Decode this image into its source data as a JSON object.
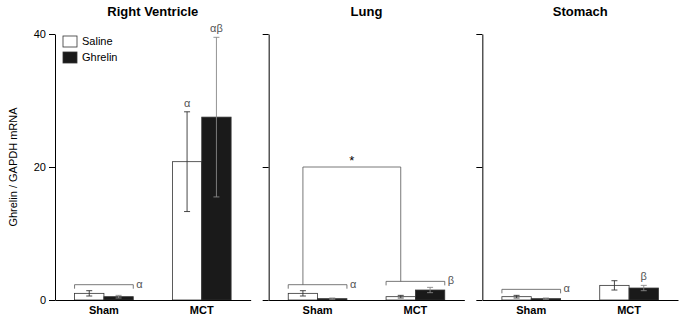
{
  "chart_data": [
    {
      "type": "bar",
      "title": "Right Ventricle",
      "y_label": "Ghrelin / GAPDH mRNA",
      "categories": [
        "Sham",
        "MCT"
      ],
      "series": [
        {
          "name": "Saline",
          "color": "white",
          "values": [
            1.0,
            20.8
          ],
          "errors": [
            0.4,
            7.5
          ]
        },
        {
          "name": "Ghrelin",
          "color": "#1a1a1a",
          "values": [
            0.5,
            27.5
          ],
          "errors": [
            0.2,
            12.0
          ]
        }
      ],
      "ylim": [
        0,
        40
      ],
      "yticks": [
        0,
        20,
        40
      ],
      "grid": false,
      "legend": "upper left",
      "annotations": [
        {
          "text": "α",
          "category": "Sham"
        },
        {
          "text": "α",
          "category": "MCT",
          "series": "Saline"
        },
        {
          "text": "αβ",
          "category": "MCT",
          "series": "Ghrelin"
        }
      ]
    },
    {
      "type": "bar",
      "title": "Lung",
      "categories": [
        "Sham",
        "MCT"
      ],
      "series": [
        {
          "name": "Saline",
          "color": "white",
          "values": [
            1.0,
            0.5
          ],
          "errors": [
            0.4,
            0.2
          ]
        },
        {
          "name": "Ghrelin",
          "color": "#1a1a1a",
          "values": [
            0.2,
            1.5
          ],
          "errors": [
            0.1,
            0.4
          ]
        }
      ],
      "ylim": [
        0,
        40
      ],
      "yticks": [
        0,
        20,
        40
      ],
      "grid": false,
      "tick_labels": "x",
      "annotations": [
        {
          "text": "α",
          "category": "Sham"
        },
        {
          "text": "β",
          "category": "MCT"
        },
        {
          "text": "*",
          "categories": [
            "Sham",
            "MCT"
          ]
        }
      ]
    },
    {
      "type": "bar",
      "title": "Stomach",
      "categories": [
        "Sham",
        "MCT"
      ],
      "series": [
        {
          "name": "Saline",
          "color": "white",
          "values": [
            0.5,
            2.2
          ],
          "errors": [
            0.2,
            0.7
          ]
        },
        {
          "name": "Ghrelin",
          "color": "#1a1a1a",
          "values": [
            0.2,
            1.8
          ],
          "errors": [
            0.1,
            0.4
          ]
        }
      ],
      "ylim": [
        0,
        40
      ],
      "yticks": [
        0,
        20,
        40
      ],
      "grid": false,
      "tick_labels": "x",
      "annotations": [
        {
          "text": "α",
          "category": "Sham"
        },
        {
          "text": "β",
          "category": "MCT",
          "series": "Ghrelin"
        }
      ]
    }
  ]
}
